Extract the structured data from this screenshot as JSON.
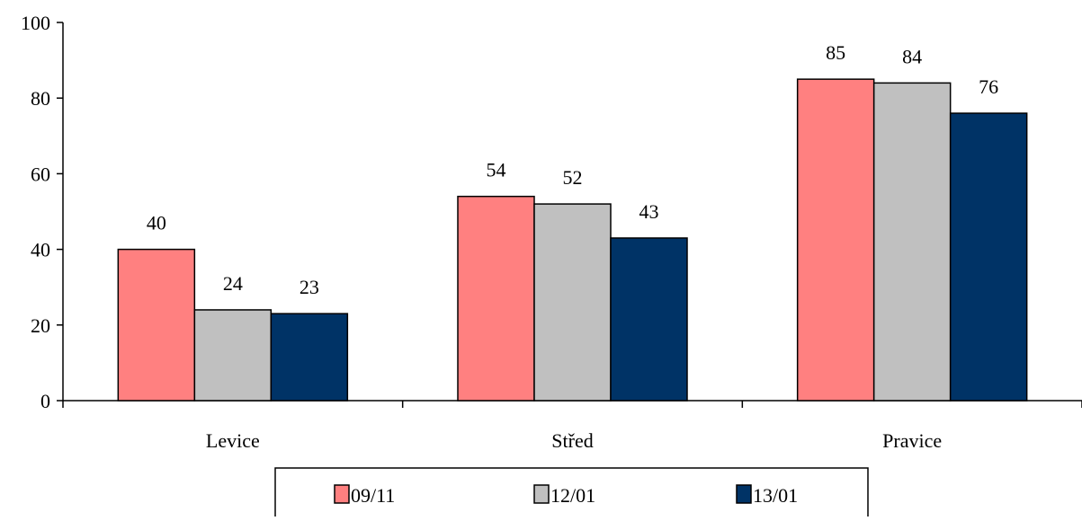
{
  "chart_data": {
    "type": "bar",
    "categories": [
      "Levice",
      "Střed",
      "Pravice"
    ],
    "series": [
      {
        "name": "09/11",
        "values": [
          40,
          54,
          85
        ],
        "color": "#ff8080"
      },
      {
        "name": "12/01",
        "values": [
          24,
          52,
          84
        ],
        "color": "#c0c0c0"
      },
      {
        "name": "13/01",
        "values": [
          23,
          43,
          76
        ],
        "color": "#003366"
      }
    ],
    "yticks": [
      0,
      20,
      40,
      60,
      80,
      100
    ],
    "ylim": [
      0,
      100
    ],
    "title": "",
    "xlabel": "",
    "ylabel": "",
    "grid": false,
    "legend_position": "bottom",
    "data_labels": true
  }
}
